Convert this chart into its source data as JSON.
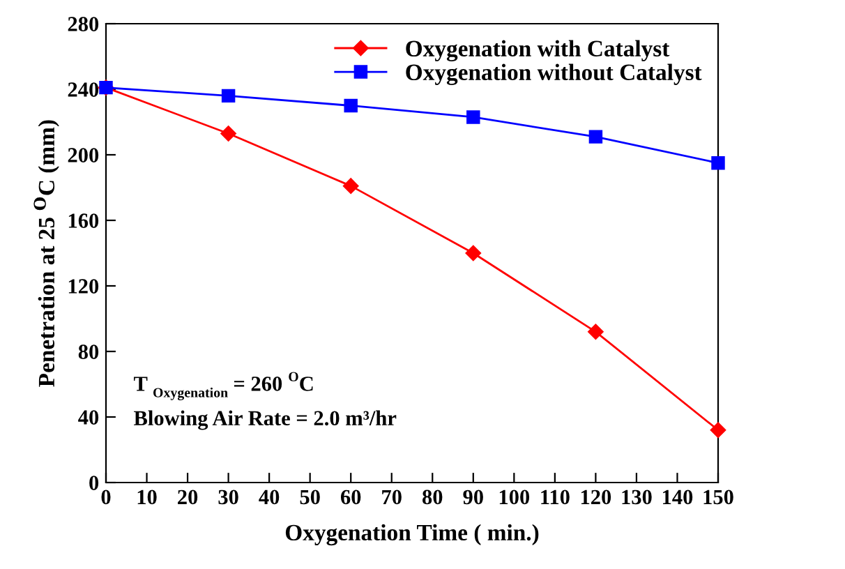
{
  "chart_data": {
    "type": "line",
    "xlabel": "Oxygenation Time ( min.)",
    "ylabel": "Penetration at 25 $^{O}$C (mm)",
    "x": [
      0,
      30,
      60,
      90,
      120,
      150
    ],
    "series": [
      {
        "name": "Oxygenation with Catalyst",
        "color": "#ff0000",
        "marker": "diamond",
        "values": [
          241,
          213,
          181,
          140,
          92,
          32
        ]
      },
      {
        "name": "Oxygenation without Catalyst",
        "color": "#0000ff",
        "marker": "square",
        "values": [
          241,
          236,
          230,
          223,
          211,
          195
        ]
      }
    ],
    "xlim": [
      0,
      150
    ],
    "xticks": [
      0,
      10,
      20,
      30,
      40,
      50,
      60,
      70,
      80,
      90,
      100,
      110,
      120,
      130,
      140,
      150
    ],
    "ylim": [
      0,
      280
    ],
    "yticks": [
      0,
      40,
      80,
      120,
      160,
      200,
      240,
      280
    ],
    "annotations": [
      "T $_{Oxygenation}$ = 260 $^{O}$C",
      "Blowing Air Rate = 2.0 m³/hr"
    ],
    "grid": false,
    "legend": "top right"
  }
}
